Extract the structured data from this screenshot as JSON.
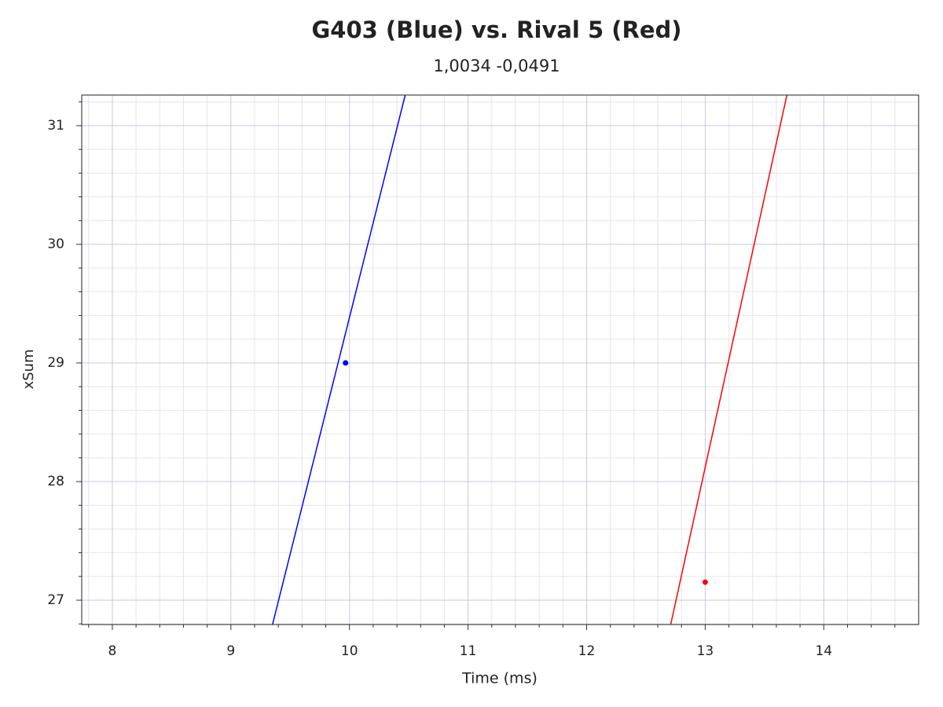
{
  "chart_data": {
    "type": "line",
    "title": "G403 (Blue) vs. Rival 5 (Red)",
    "subtitle": "1,0034 -0,0491",
    "x_label": "Time (ms)",
    "y_label": "xSum",
    "xlim": [
      7.742,
      14.8
    ],
    "ylim": [
      26.795,
      31.258
    ],
    "xticks": [
      8,
      9,
      10,
      11,
      12,
      13,
      14
    ],
    "yticks": [
      27,
      28,
      29,
      30,
      31
    ],
    "xminorticks": [
      7.8,
      8.2,
      8.4,
      8.6,
      8.8,
      9.2,
      9.4,
      9.6,
      9.8,
      10.2,
      10.4,
      10.6,
      10.8,
      11.2,
      11.4,
      11.6,
      11.8,
      12.2,
      12.4,
      12.6,
      12.8,
      13.2,
      13.4,
      13.6,
      13.8,
      14.2,
      14.4,
      14.6
    ],
    "yminorticks": [
      26.8,
      27.2,
      27.4,
      27.6,
      27.8,
      28.2,
      28.4,
      28.6,
      28.8,
      29.2,
      29.4,
      29.6,
      29.8,
      30.2,
      30.4,
      30.6,
      30.8,
      31.2
    ],
    "grid": true,
    "series": [
      {
        "color": "#0000ff",
        "mode": "line",
        "x": [
          9.351,
          10.47
        ],
        "values": [
          26.795,
          31.258
        ]
      },
      {
        "color": "#ff0000",
        "mode": "line",
        "x": [
          12.709,
          13.689
        ],
        "values": [
          26.795,
          31.258
        ]
      },
      {
        "color": "#0000ff",
        "mode": "marker",
        "x": [
          9.967
        ],
        "values": [
          29.0
        ]
      },
      {
        "color": "#ff0000",
        "mode": "marker",
        "x": [
          13.0
        ],
        "values": [
          27.152
        ]
      }
    ]
  }
}
